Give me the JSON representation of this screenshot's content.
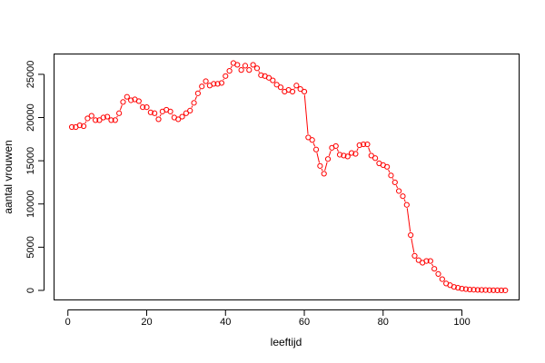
{
  "chart_data": {
    "type": "scatter",
    "connected": true,
    "marker": "open-circle",
    "color": "#ff0000",
    "xlabel": "leeftijd",
    "ylabel": "aantal vrouwen",
    "xlim": [
      -3.4,
      114.4
    ],
    "ylim": [
      -1050,
      27300
    ],
    "xticks": [
      0,
      20,
      40,
      60,
      80,
      100
    ],
    "yticks": [
      0,
      5000,
      10000,
      15000,
      20000,
      25000
    ],
    "grid": false,
    "x": [
      1,
      2,
      3,
      4,
      5,
      6,
      7,
      8,
      9,
      10,
      11,
      12,
      13,
      14,
      15,
      16,
      17,
      18,
      19,
      20,
      21,
      22,
      23,
      24,
      25,
      26,
      27,
      28,
      29,
      30,
      31,
      32,
      33,
      34,
      35,
      36,
      37,
      38,
      39,
      40,
      41,
      42,
      43,
      44,
      45,
      46,
      47,
      48,
      49,
      50,
      51,
      52,
      53,
      54,
      55,
      56,
      57,
      58,
      59,
      60,
      61,
      62,
      63,
      64,
      65,
      66,
      67,
      68,
      69,
      70,
      71,
      72,
      73,
      74,
      75,
      76,
      77,
      78,
      79,
      80,
      81,
      82,
      83,
      84,
      85,
      86,
      87,
      88,
      89,
      90,
      91,
      92,
      93,
      94,
      95,
      96,
      97,
      98,
      99,
      100,
      101,
      102,
      103,
      104,
      105,
      106,
      107,
      108,
      109,
      110,
      111
    ],
    "y": [
      18900,
      18900,
      19100,
      19000,
      19900,
      20200,
      19700,
      19700,
      20000,
      20100,
      19700,
      19700,
      20500,
      21800,
      22400,
      22000,
      22100,
      21900,
      21200,
      21200,
      20600,
      20500,
      19800,
      20700,
      20900,
      20700,
      20000,
      19800,
      20100,
      20500,
      20800,
      21700,
      22800,
      23600,
      24200,
      23700,
      23900,
      23900,
      24000,
      24800,
      25400,
      26300,
      26100,
      25500,
      26000,
      25500,
      26100,
      25700,
      24900,
      24800,
      24600,
      24300,
      23800,
      23500,
      23000,
      23200,
      23000,
      23700,
      23300,
      23000,
      17700,
      17400,
      16300,
      14400,
      13500,
      15200,
      16500,
      16700,
      15700,
      15600,
      15500,
      15900,
      15800,
      16800,
      16900,
      16900,
      15600,
      15300,
      14700,
      14500,
      14300,
      13300,
      12500,
      11500,
      10900,
      9900,
      6400,
      4000,
      3500,
      3200,
      3400,
      3400,
      2500,
      1900,
      1300,
      800,
      600,
      400,
      300,
      200,
      150,
      100,
      80,
      60,
      50,
      40,
      30,
      20,
      10,
      5,
      2
    ]
  }
}
